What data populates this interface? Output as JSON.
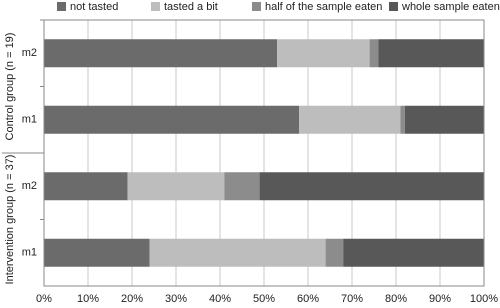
{
  "chart_data": {
    "type": "stacked-bar-horizontal",
    "categories": [
      "m2",
      "m1",
      "m2",
      "m1"
    ],
    "groups": [
      "Control group (n = 19)",
      "Intervention group (n = 37)"
    ],
    "series": [
      {
        "name": "not tasted",
        "color": "#6b6b6b",
        "values": [
          53,
          58,
          19,
          24
        ]
      },
      {
        "name": "tasted a bit",
        "color": "#bdbdbd",
        "values": [
          21,
          23,
          22,
          40
        ]
      },
      {
        "name": "half of the sample eaten",
        "color": "#8c8c8c",
        "values": [
          2,
          1,
          8,
          4
        ]
      },
      {
        "name": "whole sample eaten",
        "color": "#585858",
        "values": [
          24,
          18,
          51,
          32
        ]
      }
    ],
    "xlim": [
      0,
      100
    ],
    "xticks": [
      {
        "value": 0,
        "label": "0%"
      },
      {
        "value": 10,
        "label": "10%"
      },
      {
        "value": 20,
        "label": "20%"
      },
      {
        "value": 30,
        "label": "30%"
      },
      {
        "value": 40,
        "label": "40%"
      },
      {
        "value": 50,
        "label": "50%"
      },
      {
        "value": 60,
        "label": "60%"
      },
      {
        "value": 70,
        "label": "70%"
      },
      {
        "value": 80,
        "label": "80%"
      },
      {
        "value": 90,
        "label": "90%"
      },
      {
        "value": 100,
        "label": "100%"
      }
    ],
    "grid": true
  }
}
